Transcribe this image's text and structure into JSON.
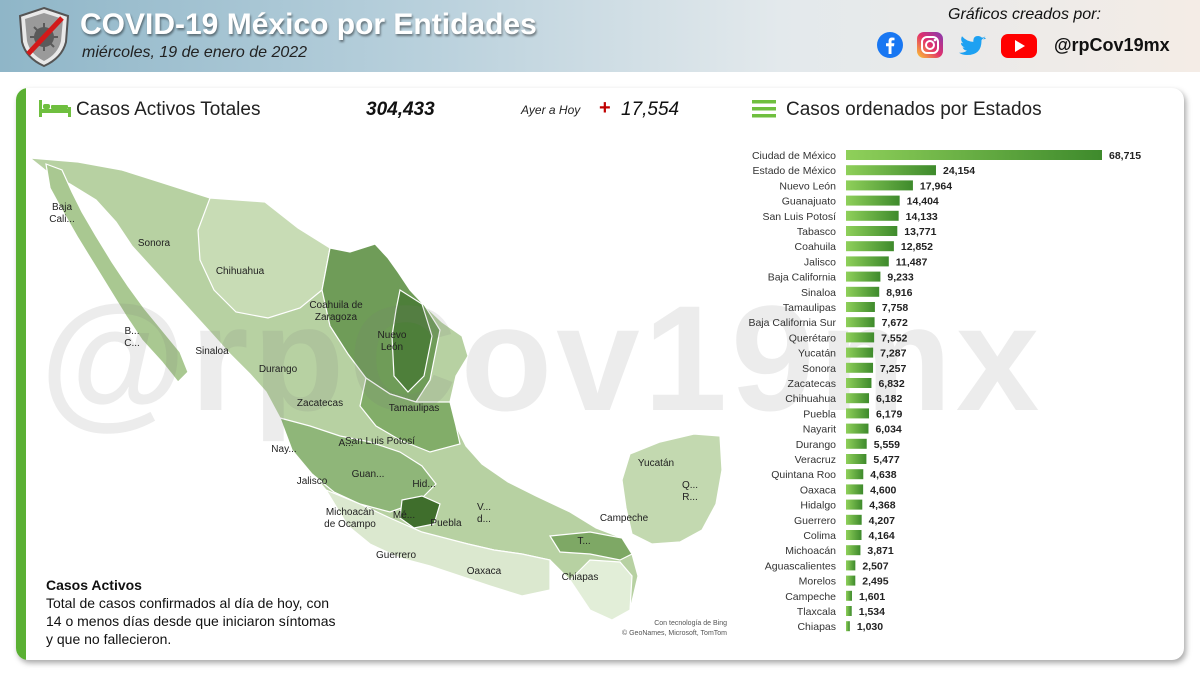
{
  "header": {
    "title": "COVID-19 México por Entidades",
    "date": "miércoles, 19 de enero de 2022",
    "credits_label": "Gráficos creados por:",
    "handle": "@rpCov19mx",
    "social_icons": [
      "facebook-icon",
      "instagram-icon",
      "twitter-icon",
      "youtube-icon"
    ]
  },
  "summary": {
    "label": "Casos Activos Totales",
    "value": "304,433",
    "delta_label": "Ayer a Hoy",
    "delta_sign": "+",
    "delta_value": "17,554"
  },
  "list_title": "Casos ordenados por Estados",
  "watermark": "@rpCov19mx",
  "note": {
    "title": "Casos Activos",
    "text": "Total de casos confirmados al día de hoy, con 14 o menos días desde que iniciaron síntomas y que no fallecieron."
  },
  "map_credit": {
    "line1": "Con tecnología de Bing",
    "line2": "© GeoNames, Microsoft, TomTom"
  },
  "map_labels": [
    "Baja Cali...",
    "Sonora",
    "Chihuahua",
    "B... C...",
    "Coahuila de Zaragoza",
    "Nuevo León",
    "Sinaloa",
    "Durango",
    "Tamaulipas",
    "Zacatecas",
    "San Luis Potosí",
    "Nay...",
    "A...",
    "Jalisco",
    "Guan...",
    "Hid...",
    "Michoacán de Ocampo",
    "Mé...",
    "Puebla",
    "V... d...",
    "Yucatán",
    "Q... R...",
    "Campeche",
    "Guerrero",
    "Oaxaca",
    "T...",
    "Chiapas"
  ],
  "colors": {
    "accent": "#5ab033",
    "bar_dark": "#3e8a2c",
    "bar_light": "#8fd05a",
    "delta_sign": "#c00000"
  },
  "chart_data": {
    "type": "bar",
    "orientation": "horizontal",
    "categories": [
      "Ciudad de México",
      "Estado de México",
      "Nuevo León",
      "Guanajuato",
      "San Luis Potosí",
      "Tabasco",
      "Coahuila",
      "Jalisco",
      "Baja California",
      "Sinaloa",
      "Tamaulipas",
      "Baja California Sur",
      "Querétaro",
      "Yucatán",
      "Sonora",
      "Zacatecas",
      "Chihuahua",
      "Puebla",
      "Nayarit",
      "Durango",
      "Veracruz",
      "Quintana Roo",
      "Oaxaca",
      "Hidalgo",
      "Guerrero",
      "Colima",
      "Michoacán",
      "Aguascalientes",
      "Morelos",
      "Campeche",
      "Tlaxcala",
      "Chiapas"
    ],
    "values": [
      68715,
      24154,
      17964,
      14404,
      14133,
      13771,
      12852,
      11487,
      9233,
      8916,
      7758,
      7672,
      7552,
      7287,
      7257,
      6832,
      6182,
      6179,
      6034,
      5559,
      5477,
      4638,
      4600,
      4368,
      4207,
      4164,
      3871,
      2507,
      2495,
      1601,
      1534,
      1030
    ],
    "value_labels": [
      "68,715",
      "24,154",
      "17,964",
      "14,404",
      "14,133",
      "13,771",
      "12,852",
      "11,487",
      "9,233",
      "8,916",
      "7,758",
      "7,672",
      "7,552",
      "7,287",
      "7,257",
      "6,832",
      "6,182",
      "6,179",
      "6,034",
      "5,559",
      "5,477",
      "4,638",
      "4,600",
      "4,368",
      "4,207",
      "4,164",
      "3,871",
      "2,507",
      "2,495",
      "1,601",
      "1,534",
      "1,030"
    ],
    "title": "",
    "xlabel": "",
    "ylabel": "",
    "xlim": [
      0,
      68715
    ],
    "grid": false,
    "legend": "none"
  }
}
